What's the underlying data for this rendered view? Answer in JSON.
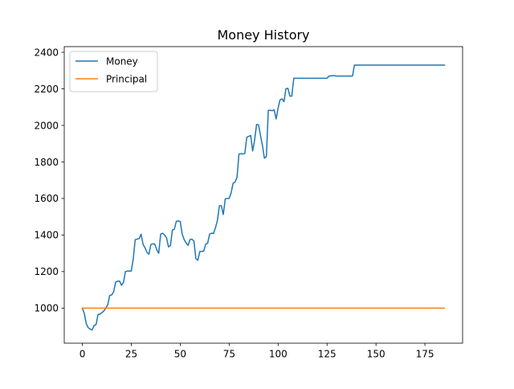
{
  "chart_data": {
    "type": "line",
    "title": "Money History",
    "xlabel": "",
    "ylabel": "",
    "xlim": [
      -9.25,
      194.25
    ],
    "ylim": [
      808,
      2431
    ],
    "xticks": [
      0,
      25,
      50,
      75,
      100,
      125,
      150,
      175
    ],
    "yticks": [
      1000,
      1200,
      1400,
      1600,
      1800,
      2000,
      2200,
      2400
    ],
    "grid": false,
    "legend_position": "top-left",
    "series": [
      {
        "name": "Money",
        "color": "#1f77b4",
        "points": [
          [
            0,
            1000
          ],
          [
            1,
            970
          ],
          [
            2,
            915
          ],
          [
            3,
            893
          ],
          [
            4,
            885
          ],
          [
            5,
            880
          ],
          [
            6,
            905
          ],
          [
            7,
            910
          ],
          [
            8,
            965
          ],
          [
            9,
            967
          ],
          [
            10,
            975
          ],
          [
            11,
            985
          ],
          [
            12,
            1000
          ],
          [
            13,
            1020
          ],
          [
            14,
            1070
          ],
          [
            15,
            1072
          ],
          [
            16,
            1090
          ],
          [
            17,
            1142
          ],
          [
            18,
            1147
          ],
          [
            19,
            1148
          ],
          [
            20,
            1125
          ],
          [
            21,
            1140
          ],
          [
            22,
            1200
          ],
          [
            23,
            1203
          ],
          [
            24,
            1203
          ],
          [
            25,
            1203
          ],
          [
            26,
            1270
          ],
          [
            27,
            1374
          ],
          [
            28,
            1378
          ],
          [
            29,
            1380
          ],
          [
            30,
            1405
          ],
          [
            31,
            1349
          ],
          [
            32,
            1330
          ],
          [
            33,
            1305
          ],
          [
            34,
            1295
          ],
          [
            35,
            1348
          ],
          [
            36,
            1352
          ],
          [
            37,
            1350
          ],
          [
            38,
            1320
          ],
          [
            39,
            1300
          ],
          [
            40,
            1405
          ],
          [
            41,
            1410
          ],
          [
            42,
            1400
          ],
          [
            43,
            1385
          ],
          [
            44,
            1335
          ],
          [
            45,
            1343
          ],
          [
            46,
            1428
          ],
          [
            47,
            1432
          ],
          [
            48,
            1475
          ],
          [
            49,
            1477
          ],
          [
            50,
            1474
          ],
          [
            51,
            1405
          ],
          [
            52,
            1375
          ],
          [
            53,
            1357
          ],
          [
            54,
            1343
          ],
          [
            55,
            1375
          ],
          [
            56,
            1377
          ],
          [
            57,
            1367
          ],
          [
            58,
            1270
          ],
          [
            59,
            1262
          ],
          [
            60,
            1310
          ],
          [
            61,
            1310
          ],
          [
            62,
            1312
          ],
          [
            63,
            1350
          ],
          [
            64,
            1355
          ],
          [
            65,
            1405
          ],
          [
            66,
            1410
          ],
          [
            67,
            1408
          ],
          [
            68,
            1440
          ],
          [
            69,
            1480
          ],
          [
            70,
            1560
          ],
          [
            71,
            1560
          ],
          [
            72,
            1512
          ],
          [
            73,
            1598
          ],
          [
            74,
            1600
          ],
          [
            75,
            1600
          ],
          [
            76,
            1630
          ],
          [
            77,
            1683
          ],
          [
            78,
            1690
          ],
          [
            79,
            1715
          ],
          [
            80,
            1843
          ],
          [
            81,
            1845
          ],
          [
            82,
            1843
          ],
          [
            83,
            1847
          ],
          [
            84,
            1935
          ],
          [
            85,
            1940
          ],
          [
            86,
            1945
          ],
          [
            87,
            1860
          ],
          [
            88,
            1920
          ],
          [
            89,
            2005
          ],
          [
            90,
            2003
          ],
          [
            91,
            1945
          ],
          [
            92,
            1890
          ],
          [
            93,
            1820
          ],
          [
            94,
            1830
          ],
          [
            95,
            2082
          ],
          [
            96,
            2083
          ],
          [
            97,
            2080
          ],
          [
            98,
            2085
          ],
          [
            99,
            2035
          ],
          [
            100,
            2095
          ],
          [
            101,
            2140
          ],
          [
            102,
            2145
          ],
          [
            103,
            2130
          ],
          [
            104,
            2200
          ],
          [
            105,
            2203
          ],
          [
            106,
            2160
          ],
          [
            107,
            2160
          ],
          [
            108,
            2258
          ],
          [
            109,
            2258
          ],
          [
            110,
            2258
          ],
          [
            115,
            2258
          ],
          [
            120,
            2258
          ],
          [
            125,
            2258
          ],
          [
            126,
            2270
          ],
          [
            128,
            2272
          ],
          [
            130,
            2270
          ],
          [
            135,
            2270
          ],
          [
            138,
            2270
          ],
          [
            139,
            2330
          ],
          [
            145,
            2330
          ],
          [
            150,
            2330
          ],
          [
            160,
            2330
          ],
          [
            170,
            2330
          ],
          [
            180,
            2330
          ],
          [
            185,
            2330
          ]
        ]
      },
      {
        "name": "Principal",
        "color": "#ff7f0e",
        "points": [
          [
            0,
            1000
          ],
          [
            185,
            1000
          ]
        ]
      }
    ]
  }
}
